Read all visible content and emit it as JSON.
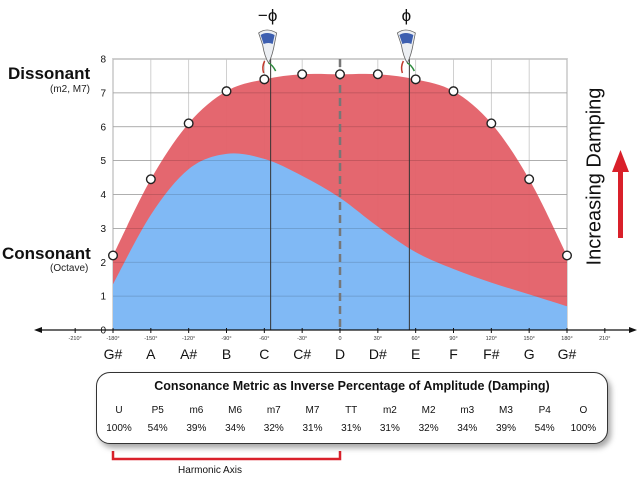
{
  "labels": {
    "dissonant": "Dissonant",
    "dissonant_sub": "(m2, M7)",
    "consonant": "Consonant",
    "consonant_sub": "(Octave)",
    "phi_neg": "−ϕ",
    "phi_pos": "ϕ",
    "damping": "Increasing Damping",
    "harmonic_axis": "Harmonic Axis"
  },
  "metric_table": {
    "title": "Consonance Metric as Inverse Percentage of Amplitude (Damping)",
    "intervals": [
      "U",
      "P5",
      "m6",
      "M6",
      "m7",
      "M7",
      "TT",
      "m2",
      "M2",
      "m3",
      "M3",
      "P4",
      "O"
    ],
    "percentages": [
      "100%",
      "54%",
      "39%",
      "34%",
      "32%",
      "31%",
      "31%",
      "31%",
      "32%",
      "34%",
      "39%",
      "54%",
      "100%"
    ]
  },
  "colors": {
    "red_area": "#e3626a",
    "blue_area": "#80b9f5",
    "harmonic_axis": "#d9202a",
    "arrow": "#d9202a"
  },
  "chart_data": {
    "type": "area",
    "xlabel": "",
    "ylabel": "",
    "xlim": [
      -210,
      210
    ],
    "ylim": [
      0,
      8
    ],
    "yticks": [
      0,
      1,
      2,
      3,
      4,
      5,
      6,
      7,
      8
    ],
    "degree_ticks": [
      {
        "x": -210,
        "label": "-210°"
      },
      {
        "x": -180,
        "label": "-180°"
      },
      {
        "x": -150,
        "label": "-150°"
      },
      {
        "x": -120,
        "label": "-120°"
      },
      {
        "x": -90,
        "label": "-90°"
      },
      {
        "x": -60,
        "label": "-60°"
      },
      {
        "x": -30,
        "label": "-30°"
      },
      {
        "x": 0,
        "label": "0"
      },
      {
        "x": 30,
        "label": "30°"
      },
      {
        "x": 60,
        "label": "60°"
      },
      {
        "x": 90,
        "label": "90°"
      },
      {
        "x": 120,
        "label": "120°"
      },
      {
        "x": 150,
        "label": "150°"
      },
      {
        "x": 180,
        "label": "180°"
      },
      {
        "x": 210,
        "label": "210°"
      }
    ],
    "note_names": [
      "G#",
      "A",
      "A#",
      "B",
      "C",
      "C#",
      "D",
      "D#",
      "E",
      "F",
      "F#",
      "G",
      "G#"
    ],
    "note_x": [
      -180,
      -150,
      -120,
      -90,
      -60,
      -30,
      0,
      30,
      60,
      90,
      120,
      150,
      180
    ],
    "grid": true,
    "markers": [
      -55,
      0,
      55
    ],
    "series": [
      {
        "kind": "dissonance-curve",
        "color": "#e3626a",
        "points": [
          {
            "x": -180,
            "y": 2.2
          },
          {
            "x": -150,
            "y": 4.45
          },
          {
            "x": -120,
            "y": 6.1
          },
          {
            "x": -90,
            "y": 7.05
          },
          {
            "x": -60,
            "y": 7.4
          },
          {
            "x": -30,
            "y": 7.55
          },
          {
            "x": 0,
            "y": 7.55
          },
          {
            "x": 30,
            "y": 7.55
          },
          {
            "x": 60,
            "y": 7.4
          },
          {
            "x": 90,
            "y": 7.05
          },
          {
            "x": 120,
            "y": 6.1
          },
          {
            "x": 150,
            "y": 4.45
          },
          {
            "x": 180,
            "y": 2.2
          }
        ]
      },
      {
        "kind": "amplitude-area",
        "color": "#80b9f5",
        "points": [
          {
            "x": -180,
            "y": 1.35
          },
          {
            "x": -150,
            "y": 3.4
          },
          {
            "x": -120,
            "y": 4.75
          },
          {
            "x": -90,
            "y": 5.2
          },
          {
            "x": -60,
            "y": 5.05
          },
          {
            "x": -30,
            "y": 4.55
          },
          {
            "x": 0,
            "y": 3.9
          },
          {
            "x": 30,
            "y": 3.05
          },
          {
            "x": 60,
            "y": 2.3
          },
          {
            "x": 90,
            "y": 1.8
          },
          {
            "x": 120,
            "y": 1.4
          },
          {
            "x": 150,
            "y": 1.05
          },
          {
            "x": 180,
            "y": 0.7
          }
        ]
      }
    ]
  }
}
